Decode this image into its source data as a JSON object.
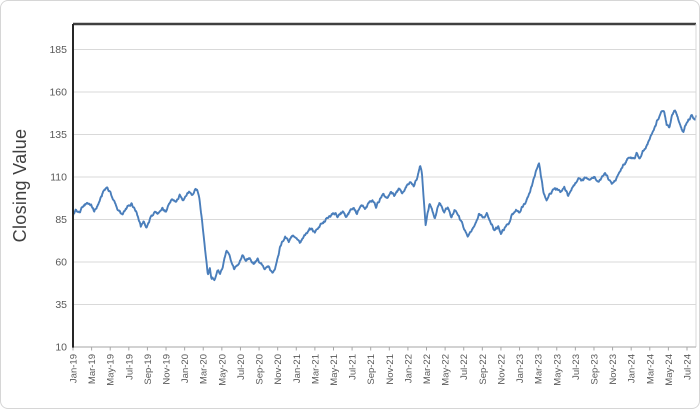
{
  "canvas": {
    "background": "#ffffff",
    "border_color": "#d6d6d6"
  },
  "chart_data": {
    "type": "line",
    "title": "",
    "xlabel": "",
    "ylabel": "Closing Value",
    "series": [
      {
        "name": "Closing Value"
      }
    ],
    "legend": "none",
    "grid": "horizontal",
    "line_color": "#4a7ebb",
    "grid_color": "#d9d9d9",
    "axis_text_color": "#595959",
    "axis_colors": {
      "left": "#262626",
      "top": "#404040",
      "bottom": "#a6a6a6",
      "right": "#d9d9d9"
    },
    "ylim": [
      10,
      200
    ],
    "y_ticks": [
      10,
      35,
      60,
      85,
      110,
      135,
      160,
      185
    ],
    "x_tick_interval_months": 2,
    "months_total": 67,
    "x_tick_labels": [
      "Jan-19",
      "Mar-19",
      "May-19",
      "Jul-19",
      "Sep-19",
      "Nov-19",
      "Jan-20",
      "Mar-20",
      "May-20",
      "Jul-20",
      "Sep-20",
      "Nov-20",
      "Jan-21",
      "Mar-21",
      "May-21",
      "Jul-21",
      "Sep-21",
      "Nov-21",
      "Jan-22",
      "Mar-22",
      "May-22",
      "Jul-22",
      "Sep-22",
      "Nov-22",
      "Jan-23",
      "Mar-23",
      "May-23",
      "Jul-23",
      "Sep-23",
      "Nov-23",
      "Jan-24",
      "Mar-24",
      "May-24",
      "Jul-24"
    ],
    "anchors": [
      [
        0,
        87.5
      ],
      [
        0.3,
        90.5
      ],
      [
        0.7,
        89
      ],
      [
        1,
        92
      ],
      [
        1.5,
        95
      ],
      [
        2,
        93
      ],
      [
        2.3,
        89.5
      ],
      [
        2.8,
        95
      ],
      [
        3.3,
        102
      ],
      [
        3.6,
        104
      ],
      [
        4,
        101
      ],
      [
        4.3,
        97
      ],
      [
        4.8,
        91
      ],
      [
        5.3,
        87.5
      ],
      [
        5.8,
        92
      ],
      [
        6.3,
        94.5
      ],
      [
        6.8,
        90
      ],
      [
        7.3,
        81
      ],
      [
        7.6,
        84.5
      ],
      [
        7.9,
        79.5
      ],
      [
        8.3,
        86
      ],
      [
        8.8,
        89.5
      ],
      [
        9.2,
        88
      ],
      [
        9.6,
        91.5
      ],
      [
        9.9,
        89.5
      ],
      [
        10.3,
        94
      ],
      [
        10.7,
        96.5
      ],
      [
        11.1,
        95.5
      ],
      [
        11.5,
        99
      ],
      [
        11.8,
        96.5
      ],
      [
        12.1,
        99
      ],
      [
        12.5,
        101.5
      ],
      [
        12.8,
        99.5
      ],
      [
        13.2,
        103.5
      ],
      [
        13.5,
        100
      ],
      [
        13.7,
        92
      ],
      [
        14,
        78
      ],
      [
        14.3,
        62
      ],
      [
        14.5,
        52
      ],
      [
        14.7,
        56
      ],
      [
        14.9,
        50.5
      ],
      [
        15.2,
        49
      ],
      [
        15.5,
        55
      ],
      [
        15.8,
        53
      ],
      [
        16.1,
        57.5
      ],
      [
        16.5,
        67
      ],
      [
        16.8,
        64
      ],
      [
        17.3,
        56
      ],
      [
        17.8,
        58
      ],
      [
        18.2,
        64
      ],
      [
        18.6,
        61
      ],
      [
        19,
        62
      ],
      [
        19.4,
        58.5
      ],
      [
        19.8,
        61.5
      ],
      [
        20.2,
        59
      ],
      [
        20.6,
        55.5
      ],
      [
        21,
        57.5
      ],
      [
        21.4,
        53.5
      ],
      [
        21.7,
        56
      ],
      [
        22,
        63
      ],
      [
        22.4,
        71
      ],
      [
        22.8,
        74.5
      ],
      [
        23.2,
        72.5
      ],
      [
        23.6,
        76
      ],
      [
        24,
        74
      ],
      [
        24.4,
        71
      ],
      [
        24.8,
        74.5
      ],
      [
        25.2,
        78
      ],
      [
        25.6,
        80
      ],
      [
        26,
        77.5
      ],
      [
        26.4,
        80.5
      ],
      [
        26.8,
        82.5
      ],
      [
        27.3,
        85.5
      ],
      [
        27.8,
        87.5
      ],
      [
        28.2,
        89
      ],
      [
        28.5,
        86.5
      ],
      [
        29,
        90
      ],
      [
        29.4,
        86.5
      ],
      [
        29.8,
        90.5
      ],
      [
        30.2,
        92
      ],
      [
        30.5,
        88.5
      ],
      [
        31,
        93.5
      ],
      [
        31.4,
        91
      ],
      [
        31.8,
        95
      ],
      [
        32.2,
        96
      ],
      [
        32.6,
        92.5
      ],
      [
        33,
        97
      ],
      [
        33.4,
        99.5
      ],
      [
        33.8,
        97
      ],
      [
        34.2,
        101.5
      ],
      [
        34.5,
        99
      ],
      [
        35,
        103
      ],
      [
        35.4,
        100.5
      ],
      [
        35.8,
        104
      ],
      [
        36.3,
        107
      ],
      [
        36.6,
        104.5
      ],
      [
        37,
        110
      ],
      [
        37.3,
        117
      ],
      [
        37.5,
        113
      ],
      [
        37.7,
        98
      ],
      [
        37.9,
        81
      ],
      [
        38.1,
        88
      ],
      [
        38.3,
        94.5
      ],
      [
        38.6,
        91
      ],
      [
        38.9,
        85
      ],
      [
        39.2,
        92.5
      ],
      [
        39.5,
        94.5
      ],
      [
        39.9,
        89
      ],
      [
        40.3,
        92.5
      ],
      [
        40.7,
        86
      ],
      [
        41,
        90.5
      ],
      [
        41.4,
        87.5
      ],
      [
        41.8,
        83
      ],
      [
        42.2,
        77
      ],
      [
        42.5,
        75.5
      ],
      [
        42.9,
        79
      ],
      [
        43.3,
        83.5
      ],
      [
        43.7,
        88.5
      ],
      [
        44.1,
        86
      ],
      [
        44.5,
        89
      ],
      [
        44.9,
        83
      ],
      [
        45.3,
        79
      ],
      [
        45.7,
        80.5
      ],
      [
        46,
        76.5
      ],
      [
        46.4,
        80
      ],
      [
        46.8,
        82
      ],
      [
        47.2,
        87.5
      ],
      [
        47.6,
        90.5
      ],
      [
        48,
        89.5
      ],
      [
        48.4,
        93.5
      ],
      [
        48.8,
        97
      ],
      [
        49.2,
        103
      ],
      [
        49.6,
        110
      ],
      [
        49.9,
        116
      ],
      [
        50.1,
        118
      ],
      [
        50.3,
        111
      ],
      [
        50.6,
        100
      ],
      [
        50.9,
        96
      ],
      [
        51.2,
        99.5
      ],
      [
        51.6,
        102.5
      ],
      [
        52,
        103.5
      ],
      [
        52.4,
        101
      ],
      [
        52.8,
        104
      ],
      [
        53.2,
        99.5
      ],
      [
        53.6,
        103
      ],
      [
        54,
        106
      ],
      [
        54.4,
        109.5
      ],
      [
        54.8,
        107.5
      ],
      [
        55.2,
        110.5
      ],
      [
        55.6,
        108
      ],
      [
        56,
        110.5
      ],
      [
        56.4,
        106.5
      ],
      [
        56.8,
        109.5
      ],
      [
        57.2,
        112
      ],
      [
        57.6,
        109
      ],
      [
        57.9,
        105.5
      ],
      [
        58.3,
        108
      ],
      [
        58.7,
        112.5
      ],
      [
        59.1,
        116.5
      ],
      [
        59.5,
        119.5
      ],
      [
        59.9,
        122
      ],
      [
        60.3,
        121
      ],
      [
        60.6,
        124
      ],
      [
        60.9,
        120.5
      ],
      [
        61.3,
        125
      ],
      [
        61.7,
        129
      ],
      [
        62.1,
        133.5
      ],
      [
        62.5,
        139
      ],
      [
        62.9,
        144
      ],
      [
        63.2,
        147.5
      ],
      [
        63.5,
        149
      ],
      [
        63.8,
        141
      ],
      [
        64.1,
        139
      ],
      [
        64.4,
        146.5
      ],
      [
        64.7,
        149.5
      ],
      [
        65,
        145
      ],
      [
        65.3,
        140
      ],
      [
        65.6,
        136.5
      ],
      [
        65.9,
        141
      ],
      [
        66.2,
        143.5
      ],
      [
        66.5,
        146
      ],
      [
        66.8,
        143.5
      ],
      [
        67,
        145.5
      ]
    ],
    "points_per_month": 21,
    "noise_amplitude": 2.4
  }
}
